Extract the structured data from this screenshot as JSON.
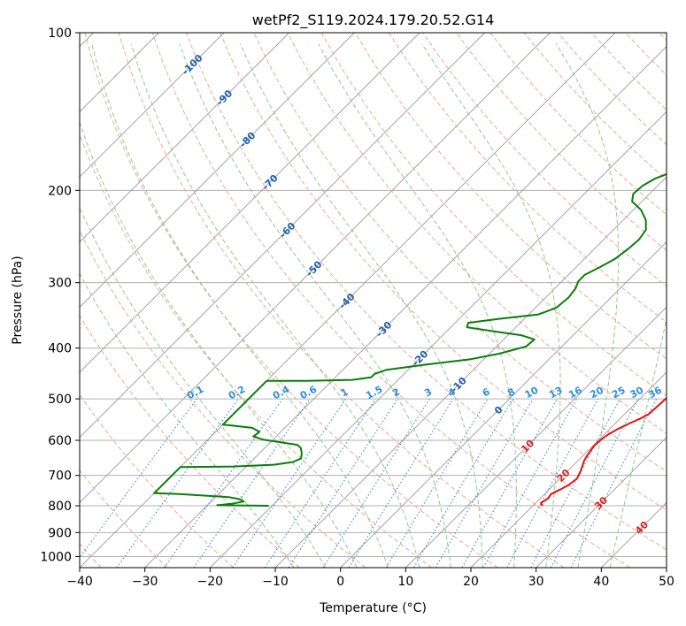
{
  "chart_data": {
    "type": "line",
    "title": "wetPf2_S119.2024.179.20.52.G14",
    "xlabel": "Temperature (°C)",
    "ylabel": "Pressure (hPa)",
    "xlim": [
      -40,
      50
    ],
    "ylim": [
      1050,
      100
    ],
    "y_scale": "log",
    "grid": true,
    "x_ticks": [
      "−40",
      "−30",
      "−20",
      "−10",
      "0",
      "10",
      "20",
      "30",
      "40",
      "50"
    ],
    "x_tick_values": [
      -40,
      -30,
      -20,
      -10,
      0,
      10,
      20,
      30,
      40,
      50
    ],
    "y_ticks": [
      "100",
      "200",
      "300",
      "400",
      "500",
      "600",
      "700",
      "800",
      "900",
      "1000"
    ],
    "y_tick_values": [
      100,
      200,
      300,
      400,
      500,
      600,
      700,
      800,
      900,
      1000
    ],
    "colors": {
      "temperature": "#e8100e",
      "dewpoint": "#0a7d0a",
      "isotherm": "#9a9a9a",
      "dry_adiabat": "#f3a68c",
      "moist_adiabat": "#8ccb8c",
      "mixing_ratio": "#2f8de0",
      "temp_label": "#d62020",
      "pot_temp_label": "#1f5fa8"
    },
    "series": [
      {
        "key": "temperature",
        "points": [
          [
            21.5,
            800
          ],
          [
            20.8,
            790
          ],
          [
            21.2,
            775
          ],
          [
            21.0,
            760
          ],
          [
            21.7,
            745
          ],
          [
            22.3,
            730
          ],
          [
            22.6,
            710
          ],
          [
            22.1,
            690
          ],
          [
            21.5,
            672
          ],
          [
            20.9,
            655
          ],
          [
            20.5,
            635
          ],
          [
            20.2,
            615
          ],
          [
            20.3,
            598
          ],
          [
            20.6,
            585
          ],
          [
            21.3,
            570
          ],
          [
            22.3,
            555
          ],
          [
            23.1,
            545
          ],
          [
            23.7,
            535
          ],
          [
            23.8,
            520
          ],
          [
            23.9,
            505
          ],
          [
            24.0,
            492
          ],
          [
            24.2,
            480
          ],
          [
            24.3,
            470
          ],
          [
            23.8,
            460
          ],
          [
            23.2,
            445
          ],
          [
            22.3,
            430
          ],
          [
            21.2,
            412
          ],
          [
            20.3,
            395
          ],
          [
            19.7,
            382
          ],
          [
            19.5,
            372
          ],
          [
            19.3,
            362
          ],
          [
            18.6,
            350
          ],
          [
            17.5,
            337
          ],
          [
            16.2,
            322
          ],
          [
            15.0,
            307
          ],
          [
            13.6,
            290
          ],
          [
            11.8,
            272
          ],
          [
            10.0,
            255
          ],
          [
            8.5,
            240
          ],
          [
            7.6,
            228
          ],
          [
            7.3,
            218
          ],
          [
            7.2,
            207
          ],
          [
            7.1,
            195
          ],
          [
            6.8,
            183
          ],
          [
            6.2,
            172
          ],
          [
            5.0,
            160
          ],
          [
            3.6,
            150
          ],
          [
            2.1,
            139
          ],
          [
            0.9,
            130
          ],
          [
            0.4,
            122
          ],
          [
            0.3,
            115
          ],
          [
            0.5,
            110
          ],
          [
            1.0,
            105
          ],
          [
            1.6,
            101
          ],
          [
            1.9,
            100
          ]
        ]
      },
      {
        "key": "dewpoint",
        "points": [
          [
            -20.5,
            800
          ],
          [
            -28.5,
            798
          ],
          [
            -26.5,
            793
          ],
          [
            -25.0,
            785
          ],
          [
            -26.0,
            777
          ],
          [
            -28.0,
            770
          ],
          [
            -32.0,
            765
          ],
          [
            -36.0,
            760
          ],
          [
            -40,
            757
          ],
          [
            -40,
            675
          ],
          [
            -32.0,
            673
          ],
          [
            -26.0,
            668
          ],
          [
            -23.5,
            660
          ],
          [
            -22.8,
            650
          ],
          [
            -23.5,
            635
          ],
          [
            -24.5,
            620
          ],
          [
            -25.5,
            612
          ],
          [
            -28.0,
            606
          ],
          [
            -31.5,
            598
          ],
          [
            -33.5,
            590
          ],
          [
            -33.3,
            578
          ],
          [
            -35.0,
            568
          ],
          [
            -38.5,
            562
          ],
          [
            -40,
            560
          ],
          [
            -40,
            462
          ],
          [
            -34.0,
            462
          ],
          [
            -27.0,
            460
          ],
          [
            -24.5,
            455
          ],
          [
            -24.5,
            448
          ],
          [
            -23.3,
            440
          ],
          [
            -18.0,
            430
          ],
          [
            -12.0,
            420
          ],
          [
            -8.5,
            410
          ],
          [
            -5.5,
            397
          ],
          [
            -5.3,
            385
          ],
          [
            -8.0,
            378
          ],
          [
            -12.5,
            372
          ],
          [
            -17.5,
            365
          ],
          [
            -18.0,
            358
          ],
          [
            -14.0,
            352
          ],
          [
            -8.5,
            345
          ],
          [
            -6.8,
            335
          ],
          [
            -6.5,
            320
          ],
          [
            -6.8,
            308
          ],
          [
            -7.5,
            298
          ],
          [
            -7.5,
            290
          ],
          [
            -6.3,
            280
          ],
          [
            -5.3,
            270
          ],
          [
            -4.8,
            258
          ],
          [
            -4.6,
            248
          ],
          [
            -5.0,
            238
          ],
          [
            -6.5,
            228
          ],
          [
            -8.8,
            218
          ],
          [
            -11.5,
            210
          ],
          [
            -12.5,
            203
          ],
          [
            -12.3,
            196
          ],
          [
            -11.5,
            190
          ],
          [
            -9.5,
            183
          ],
          [
            -7.5,
            176
          ],
          [
            -6.0,
            169
          ],
          [
            -4.0,
            160
          ],
          [
            -2.5,
            150
          ],
          [
            -1.5,
            142
          ],
          [
            -0.5,
            133
          ],
          [
            -0.4,
            125
          ],
          [
            -0.2,
            117
          ],
          [
            0.2,
            110
          ],
          [
            0.8,
            105
          ],
          [
            1.4,
            101
          ],
          [
            1.8,
            100
          ]
        ]
      }
    ],
    "mixing_ratio_labels": [
      "0.1",
      "0.2",
      "0.4",
      "0.6",
      "1",
      "1.5",
      "2",
      "3",
      "4",
      "6",
      "8",
      "10",
      "13",
      "16",
      "20",
      "25",
      "30",
      "36"
    ],
    "mixing_ratio_values": [
      0.1,
      0.2,
      0.4,
      0.6,
      1,
      1.5,
      2,
      3,
      4,
      6,
      8,
      10,
      13,
      16,
      20,
      25,
      30,
      36
    ],
    "isotherm_labels": [
      {
        "text": "-100",
        "value": -100,
        "p": 115
      },
      {
        "text": "-90",
        "value": -90,
        "p": 133
      },
      {
        "text": "-80",
        "value": -80,
        "p": 160
      },
      {
        "text": "-70",
        "value": -70,
        "p": 193
      },
      {
        "text": "-60",
        "value": -60,
        "p": 238
      },
      {
        "text": "-50",
        "value": -50,
        "p": 282
      },
      {
        "text": "-40",
        "value": -40,
        "p": 325
      },
      {
        "text": "-30",
        "value": -30,
        "p": 368
      },
      {
        "text": "-20",
        "value": -20,
        "p": 418
      },
      {
        "text": "-10",
        "value": -10,
        "p": 470
      },
      {
        "text": "0",
        "value": 0,
        "p": 525
      }
    ],
    "pot_temp_labels": [
      {
        "text": "10",
        "value": 10,
        "p": 615
      },
      {
        "text": "20",
        "value": 20,
        "p": 700
      },
      {
        "text": "30",
        "value": 30,
        "p": 790
      },
      {
        "text": "40",
        "value": 40,
        "p": 880
      }
    ]
  }
}
